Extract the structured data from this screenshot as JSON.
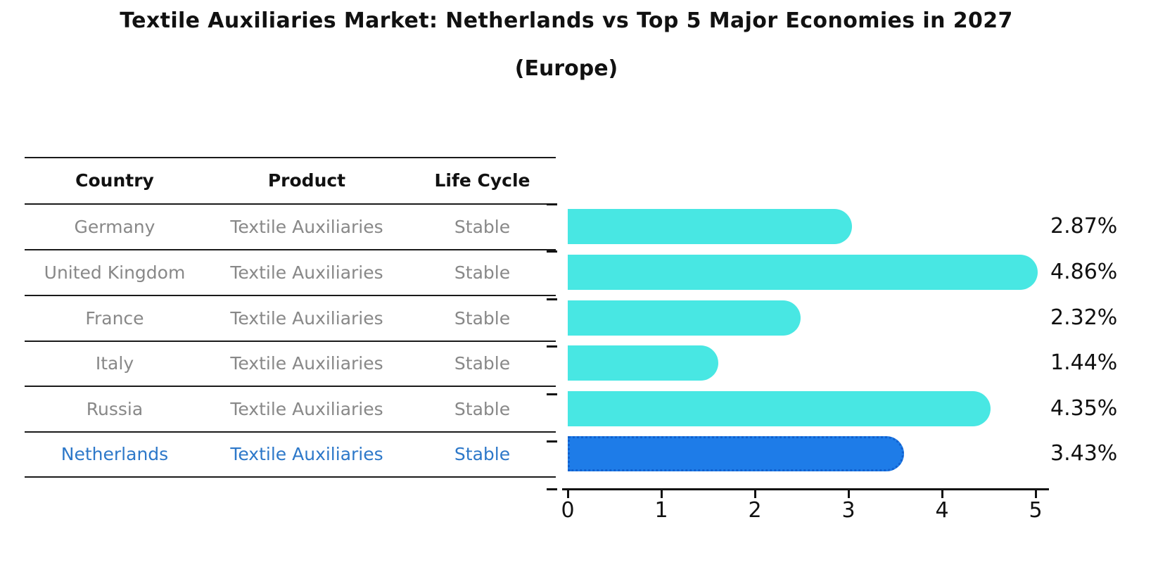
{
  "title": "Textile Auxiliaries Market: Netherlands vs Top 5 Major Economies in 2027",
  "subtitle": "(Europe)",
  "table": {
    "headers": {
      "country": "Country",
      "product": "Product",
      "life_cycle": "Life Cycle"
    },
    "rows": [
      {
        "country": "Germany",
        "product": "Textile Auxiliaries",
        "life_cycle": "Stable",
        "highlight": false
      },
      {
        "country": "United Kingdom",
        "product": "Textile Auxiliaries",
        "life_cycle": "Stable",
        "highlight": false
      },
      {
        "country": "France",
        "product": "Textile Auxiliaries",
        "life_cycle": "Stable",
        "highlight": false
      },
      {
        "country": "Italy",
        "product": "Textile Auxiliaries",
        "life_cycle": "Stable",
        "highlight": false
      },
      {
        "country": "Russia",
        "product": "Textile Auxiliaries",
        "life_cycle": "Stable",
        "highlight": false
      },
      {
        "country": "Netherlands",
        "product": "Textile Auxiliaries",
        "life_cycle": "Stable",
        "highlight": true
      }
    ]
  },
  "chart_data": {
    "type": "bar",
    "orientation": "horizontal",
    "title": "Textile Auxiliaries Market: Netherlands vs Top 5 Major Economies in 2027",
    "subtitle": "(Europe)",
    "categories": [
      "Germany",
      "United Kingdom",
      "France",
      "Italy",
      "Russia",
      "Netherlands"
    ],
    "values": [
      2.87,
      4.86,
      2.32,
      1.44,
      4.35,
      3.43
    ],
    "value_labels": [
      "2.87%",
      "4.86%",
      "2.32%",
      "1.44%",
      "4.35%",
      "3.43%"
    ],
    "highlight_category": "Netherlands",
    "xlim": [
      0,
      5
    ],
    "xticks": [
      "0",
      "1",
      "2",
      "3",
      "4",
      "5"
    ],
    "grid": false,
    "legend": false,
    "colors": {
      "bar": "#48e7e3",
      "highlight_bar": "#1e7ce8",
      "highlight_bar_border": "#1161cf",
      "highlight_text": "#2d78c9",
      "table_text": "#888888",
      "header_text": "#111111",
      "axis": "#111111"
    }
  }
}
